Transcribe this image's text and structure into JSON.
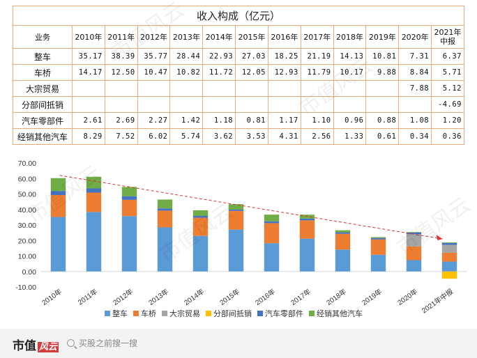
{
  "table": {
    "title": "收入构成（亿元）",
    "corner": "业务",
    "years": [
      "2010年",
      "2011年",
      "2012年",
      "2013年",
      "2014年",
      "2015年",
      "2016年",
      "2017年",
      "2018年",
      "2019年",
      "2020年",
      "2021年中报"
    ],
    "rows": [
      {
        "name": "整车",
        "values": [
          "35.17",
          "38.39",
          "35.77",
          "28.44",
          "22.93",
          "27.03",
          "18.25",
          "21.19",
          "14.13",
          "10.81",
          "7.31",
          "6.37"
        ]
      },
      {
        "name": "车桥",
        "values": [
          "14.17",
          "12.50",
          "10.47",
          "10.82",
          "11.72",
          "12.05",
          "12.93",
          "11.79",
          "10.17",
          "9.88",
          "8.84",
          "5.71"
        ]
      },
      {
        "name": "大宗贸易",
        "values": [
          "",
          "",
          "",
          "",
          "",
          "",
          "",
          "",
          "",
          "",
          "7.88",
          "5.12"
        ]
      },
      {
        "name": "分部间抵销",
        "values": [
          "",
          "",
          "",
          "",
          "",
          "",
          "",
          "",
          "",
          "",
          "",
          "-4.69"
        ]
      },
      {
        "name": "汽车零部件",
        "values": [
          "2.61",
          "2.69",
          "2.27",
          "1.42",
          "1.18",
          "0.81",
          "1.17",
          "1.10",
          "0.96",
          "0.88",
          "1.08",
          "1.20"
        ]
      },
      {
        "name": "经销其他汽车",
        "values": [
          "8.29",
          "7.52",
          "6.02",
          "5.74",
          "3.62",
          "3.53",
          "4.31",
          "2.56",
          "1.33",
          "0.61",
          "0.34",
          "0.36"
        ]
      }
    ]
  },
  "chart_data": {
    "type": "bar",
    "stacked": true,
    "categories": [
      "2010年",
      "2011年",
      "2012年",
      "2013年",
      "2014年",
      "2015年",
      "2016年",
      "2017年",
      "2018年",
      "2019年",
      "2020年",
      "2021年中报"
    ],
    "series": [
      {
        "name": "整车",
        "color": "#5b9bd5",
        "values": [
          35.17,
          38.39,
          35.77,
          28.44,
          22.93,
          27.03,
          18.25,
          21.19,
          14.13,
          10.81,
          7.31,
          6.37
        ]
      },
      {
        "name": "车桥",
        "color": "#ed7d31",
        "values": [
          14.17,
          12.5,
          10.47,
          10.82,
          11.72,
          12.05,
          12.93,
          11.79,
          10.17,
          9.88,
          8.84,
          5.71
        ]
      },
      {
        "name": "大宗贸易",
        "color": "#a5a5a5",
        "values": [
          0,
          0,
          0,
          0,
          0,
          0,
          0,
          0,
          0,
          0,
          7.88,
          5.12
        ]
      },
      {
        "name": "分部间抵销",
        "color": "#ffc000",
        "values": [
          0,
          0,
          0,
          0,
          0,
          0,
          0,
          0,
          0,
          0,
          0,
          -4.69
        ]
      },
      {
        "name": "汽车零部件",
        "color": "#4472c4",
        "values": [
          2.61,
          2.69,
          2.27,
          1.42,
          1.18,
          0.81,
          1.17,
          1.1,
          0.96,
          0.88,
          1.08,
          1.2
        ]
      },
      {
        "name": "经销其他汽车",
        "color": "#70ad47",
        "values": [
          8.29,
          7.52,
          6.02,
          5.74,
          3.62,
          3.53,
          4.31,
          2.56,
          1.33,
          0.61,
          0.34,
          0.36
        ]
      }
    ],
    "ylim": [
      -10,
      70
    ],
    "yticks": [
      "70.00",
      "60.00",
      "50.00",
      "40.00",
      "30.00",
      "20.00",
      "10.00",
      "0.00",
      "-10.00"
    ],
    "trend_line": {
      "color": "#e03030",
      "style": "dashed",
      "from": "2010年",
      "to": "2021年中报"
    },
    "legend_position": "bottom",
    "grid": false
  },
  "footer": {
    "logo_text": "市值",
    "logo_mark": "风云",
    "search_text": "买股之前搜一搜"
  },
  "watermark": "市值风云"
}
